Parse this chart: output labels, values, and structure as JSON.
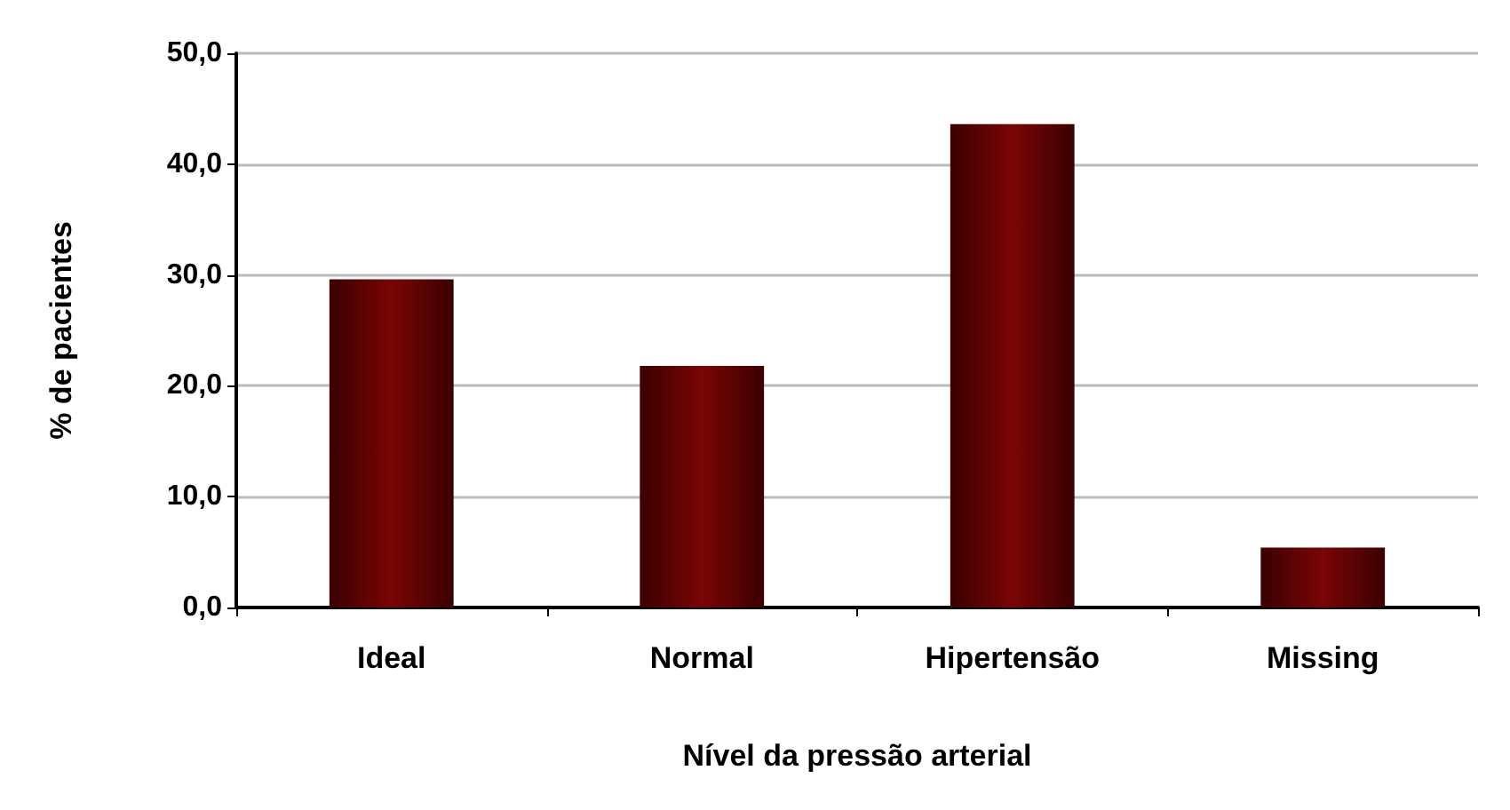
{
  "chart_data": {
    "type": "bar",
    "xlabel": "Nível da pressão arterial",
    "ylabel": "% de pacientes",
    "categories": [
      "Ideal",
      "Normal",
      "Hipertensão",
      "Missing"
    ],
    "values": [
      29.6,
      21.8,
      43.6,
      5.4
    ],
    "color": "#7a0505",
    "ylim": [
      0,
      50
    ],
    "yticks": [
      {
        "value": 0,
        "label": "0,0"
      },
      {
        "value": 10,
        "label": "10,0"
      },
      {
        "value": 20,
        "label": "20,0"
      },
      {
        "value": 30,
        "label": "30,0"
      },
      {
        "value": 40,
        "label": "40,0"
      },
      {
        "value": 50,
        "label": "50,0"
      }
    ],
    "grid": "y"
  }
}
